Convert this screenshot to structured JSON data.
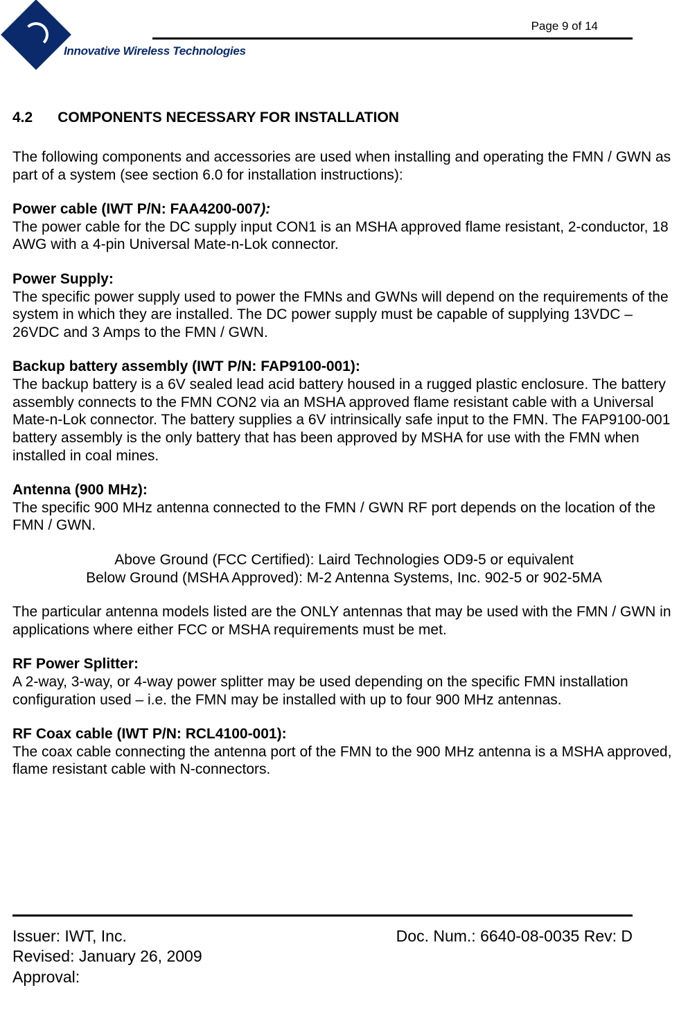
{
  "header": {
    "logo_text": "Innovative Wireless Technologies",
    "page_indicator": "Page 9 of 14"
  },
  "section": {
    "number": "4.2",
    "title": "COMPONENTS NECESSARY FOR INSTALLATION",
    "intro": "The following components and accessories are used when installing and operating the FMN / GWN as part of a system (see section 6.0 for installation instructions):"
  },
  "power_cable": {
    "heading_prefix": "Power cable (IWT P/N:  FAA4200-007",
    "heading_suffix": "):",
    "body": "The power cable for the DC supply input CON1 is an MSHA approved flame resistant, 2-conductor, 18 AWG with a 4-pin Universal Mate-n-Lok connector."
  },
  "power_supply": {
    "heading": "Power Supply:",
    "body": "The specific power supply used to power the FMNs and GWNs will depend on the requirements of the system in which they are installed.  The DC power supply must be capable of supplying 13VDC – 26VDC and 3 Amps to the FMN / GWN."
  },
  "backup_battery": {
    "heading": "Backup battery assembly (IWT P/N: FAP9100-001):",
    "body": "The backup battery is a 6V sealed lead acid battery housed in a rugged plastic enclosure.  The battery assembly connects to the FMN CON2 via an MSHA approved flame resistant cable with a Universal Mate-n-Lok connector.  The battery supplies a 6V intrinsically safe input to the FMN.  The FAP9100-001 battery assembly is the only battery that has been approved by MSHA for use with the FMN when installed in coal mines."
  },
  "antenna": {
    "heading": "Antenna (900 MHz):",
    "body": "The specific 900 MHz antenna connected to the FMN / GWN RF port depends on the location of the FMN / GWN.",
    "above": "Above Ground (FCC Certified):  Laird Technologies OD9-5 or equivalent",
    "below": "Below Ground (MSHA Approved):  M-2 Antenna Systems, Inc. 902-5 or 902-5MA",
    "note": "The particular antenna models listed are the ONLY antennas that may be used with the FMN / GWN in applications where either FCC or MSHA requirements must be met."
  },
  "rf_splitter": {
    "heading": "RF Power Splitter:",
    "body": "A 2-way, 3-way, or 4-way power splitter may be used depending on the specific FMN installation configuration used – i.e. the FMN may be installed with up to four 900 MHz antennas."
  },
  "rf_coax": {
    "heading": "RF Coax cable (IWT P/N:  RCL4100-001):",
    "body": "The coax cable connecting the antenna port of the FMN to the 900 MHz antenna is a MSHA approved, flame resistant cable with N-connectors."
  },
  "footer": {
    "issuer": "Issuer: IWT, Inc.",
    "doc_num": "Doc. Num.: 6640-08-0035 Rev: D",
    "revised": "Revised:  January 26, 2009",
    "approval": "Approval:"
  }
}
